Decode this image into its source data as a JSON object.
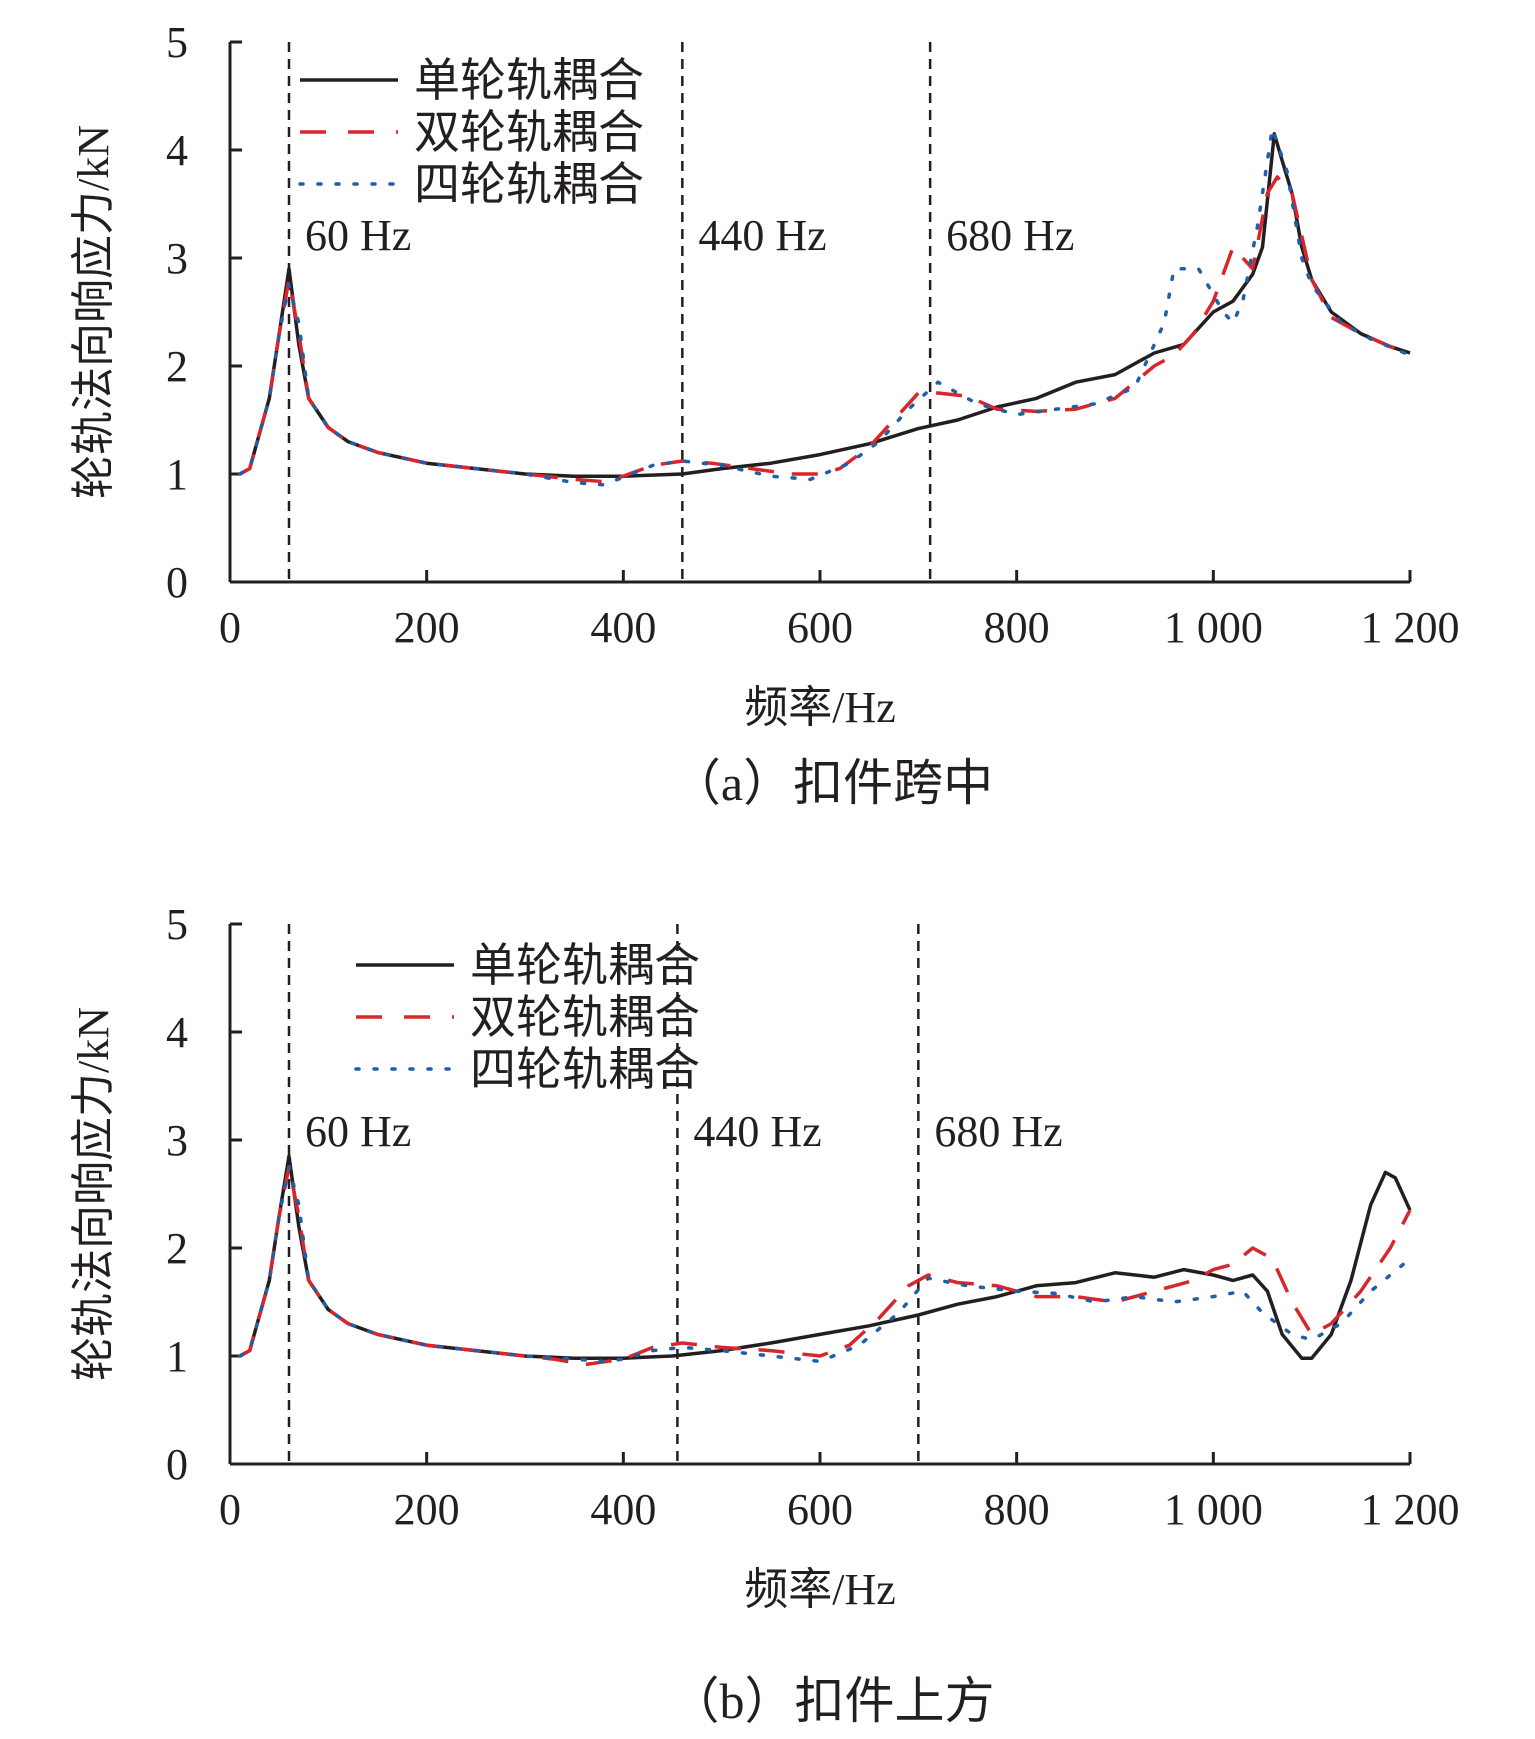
{
  "chart_data": [
    {
      "type": "line",
      "caption": "（a）扣件跨中",
      "xlabel": "频率/Hz",
      "ylabel": "轮轨法向响应力/kN",
      "xlim": [
        0,
        1200
      ],
      "ylim": [
        0,
        5
      ],
      "xticks": [
        0,
        200,
        400,
        600,
        800,
        1000,
        1200
      ],
      "xtick_labels": [
        "0",
        "200",
        "400",
        "600",
        "800",
        "1 000",
        "1 200"
      ],
      "yticks": [
        0,
        1,
        2,
        3,
        4,
        5
      ],
      "ytick_labels": [
        "0",
        "1",
        "2",
        "3",
        "4",
        "5"
      ],
      "legend_position": "top-left",
      "grid": false,
      "annotations": [
        {
          "x": 60,
          "label": "60 Hz"
        },
        {
          "x": 460,
          "label": "440 Hz"
        },
        {
          "x": 712,
          "label": "680 Hz"
        }
      ],
      "series": [
        {
          "name": "单轮轨耦合",
          "style": "solid",
          "color": "#231f20",
          "points": [
            [
              10,
              1.0
            ],
            [
              20,
              1.05
            ],
            [
              40,
              1.7
            ],
            [
              50,
              2.3
            ],
            [
              60,
              2.9
            ],
            [
              70,
              2.2
            ],
            [
              80,
              1.7
            ],
            [
              100,
              1.43
            ],
            [
              120,
              1.3
            ],
            [
              150,
              1.2
            ],
            [
              200,
              1.1
            ],
            [
              250,
              1.05
            ],
            [
              300,
              1.0
            ],
            [
              350,
              0.98
            ],
            [
              400,
              0.98
            ],
            [
              460,
              1.0
            ],
            [
              500,
              1.05
            ],
            [
              550,
              1.1
            ],
            [
              600,
              1.18
            ],
            [
              650,
              1.28
            ],
            [
              700,
              1.42
            ],
            [
              740,
              1.5
            ],
            [
              780,
              1.62
            ],
            [
              820,
              1.7
            ],
            [
              860,
              1.85
            ],
            [
              900,
              1.92
            ],
            [
              940,
              2.12
            ],
            [
              970,
              2.2
            ],
            [
              1000,
              2.5
            ],
            [
              1020,
              2.6
            ],
            [
              1040,
              2.85
            ],
            [
              1050,
              3.1
            ],
            [
              1058,
              3.8
            ],
            [
              1062,
              4.15
            ],
            [
              1070,
              3.9
            ],
            [
              1080,
              3.6
            ],
            [
              1090,
              3.1
            ],
            [
              1100,
              2.8
            ],
            [
              1120,
              2.5
            ],
            [
              1150,
              2.3
            ],
            [
              1180,
              2.18
            ],
            [
              1200,
              2.12
            ]
          ]
        },
        {
          "name": "双轮轨耦合",
          "style": "dashed",
          "color": "#d9262b",
          "points": [
            [
              10,
              1.0
            ],
            [
              20,
              1.05
            ],
            [
              40,
              1.7
            ],
            [
              50,
              2.3
            ],
            [
              60,
              2.8
            ],
            [
              70,
              2.3
            ],
            [
              80,
              1.7
            ],
            [
              100,
              1.43
            ],
            [
              120,
              1.3
            ],
            [
              150,
              1.2
            ],
            [
              200,
              1.1
            ],
            [
              250,
              1.05
            ],
            [
              300,
              1.0
            ],
            [
              350,
              0.95
            ],
            [
              380,
              0.93
            ],
            [
              400,
              0.98
            ],
            [
              430,
              1.08
            ],
            [
              460,
              1.12
            ],
            [
              490,
              1.1
            ],
            [
              530,
              1.05
            ],
            [
              570,
              1.0
            ],
            [
              600,
              1.0
            ],
            [
              620,
              1.05
            ],
            [
              650,
              1.25
            ],
            [
              680,
              1.55
            ],
            [
              700,
              1.75
            ],
            [
              720,
              1.75
            ],
            [
              750,
              1.72
            ],
            [
              780,
              1.6
            ],
            [
              820,
              1.58
            ],
            [
              860,
              1.6
            ],
            [
              900,
              1.7
            ],
            [
              940,
              2.0
            ],
            [
              960,
              2.1
            ],
            [
              980,
              2.3
            ],
            [
              1000,
              2.6
            ],
            [
              1020,
              3.1
            ],
            [
              1040,
              2.9
            ],
            [
              1055,
              3.6
            ],
            [
              1065,
              3.75
            ],
            [
              1080,
              3.6
            ],
            [
              1100,
              2.8
            ],
            [
              1120,
              2.45
            ],
            [
              1150,
              2.3
            ],
            [
              1200,
              2.1
            ]
          ]
        },
        {
          "name": "四轮轨耦合",
          "style": "dotted",
          "color": "#1f5fa8",
          "points": [
            [
              10,
              1.0
            ],
            [
              20,
              1.05
            ],
            [
              40,
              1.7
            ],
            [
              50,
              2.3
            ],
            [
              60,
              2.75
            ],
            [
              70,
              2.4
            ],
            [
              80,
              1.7
            ],
            [
              100,
              1.43
            ],
            [
              120,
              1.3
            ],
            [
              150,
              1.2
            ],
            [
              200,
              1.1
            ],
            [
              250,
              1.05
            ],
            [
              300,
              1.0
            ],
            [
              350,
              0.92
            ],
            [
              380,
              0.9
            ],
            [
              400,
              0.97
            ],
            [
              430,
              1.08
            ],
            [
              460,
              1.12
            ],
            [
              500,
              1.08
            ],
            [
              550,
              0.98
            ],
            [
              590,
              0.95
            ],
            [
              630,
              1.1
            ],
            [
              660,
              1.3
            ],
            [
              690,
              1.6
            ],
            [
              720,
              1.85
            ],
            [
              760,
              1.65
            ],
            [
              800,
              1.55
            ],
            [
              840,
              1.6
            ],
            [
              880,
              1.65
            ],
            [
              920,
              1.8
            ],
            [
              950,
              2.4
            ],
            [
              960,
              2.9
            ],
            [
              985,
              2.9
            ],
            [
              1010,
              2.5
            ],
            [
              1020,
              2.4
            ],
            [
              1030,
              2.6
            ],
            [
              1045,
              3.3
            ],
            [
              1060,
              4.2
            ],
            [
              1075,
              3.8
            ],
            [
              1090,
              3.0
            ],
            [
              1100,
              2.75
            ],
            [
              1130,
              2.4
            ],
            [
              1160,
              2.25
            ],
            [
              1200,
              2.1
            ]
          ]
        }
      ]
    },
    {
      "type": "line",
      "caption": "（b）扣件上方",
      "xlabel": "频率/Hz",
      "ylabel": "轮轨法向响应力/kN",
      "xlim": [
        0,
        1200
      ],
      "ylim": [
        0,
        5
      ],
      "xticks": [
        0,
        200,
        400,
        600,
        800,
        1000,
        1200
      ],
      "xtick_labels": [
        "0",
        "200",
        "400",
        "600",
        "800",
        "1 000",
        "1 200"
      ],
      "yticks": [
        0,
        1,
        2,
        3,
        4,
        5
      ],
      "ytick_labels": [
        "0",
        "1",
        "2",
        "3",
        "4",
        "5"
      ],
      "legend_position": "top-left",
      "grid": false,
      "annotations": [
        {
          "x": 60,
          "label": "60 Hz"
        },
        {
          "x": 455,
          "label": "440 Hz"
        },
        {
          "x": 700,
          "label": "680 Hz"
        }
      ],
      "series": [
        {
          "name": "单轮轨耦合",
          "style": "solid",
          "color": "#231f20",
          "points": [
            [
              10,
              1.0
            ],
            [
              20,
              1.05
            ],
            [
              40,
              1.7
            ],
            [
              50,
              2.3
            ],
            [
              60,
              2.85
            ],
            [
              70,
              2.2
            ],
            [
              80,
              1.7
            ],
            [
              100,
              1.43
            ],
            [
              120,
              1.3
            ],
            [
              150,
              1.2
            ],
            [
              200,
              1.1
            ],
            [
              250,
              1.05
            ],
            [
              300,
              1.0
            ],
            [
              350,
              0.98
            ],
            [
              400,
              0.98
            ],
            [
              450,
              1.0
            ],
            [
              500,
              1.05
            ],
            [
              550,
              1.12
            ],
            [
              600,
              1.2
            ],
            [
              650,
              1.28
            ],
            [
              700,
              1.38
            ],
            [
              740,
              1.48
            ],
            [
              780,
              1.55
            ],
            [
              820,
              1.65
            ],
            [
              860,
              1.68
            ],
            [
              900,
              1.77
            ],
            [
              940,
              1.73
            ],
            [
              970,
              1.8
            ],
            [
              1000,
              1.75
            ],
            [
              1020,
              1.7
            ],
            [
              1040,
              1.75
            ],
            [
              1055,
              1.6
            ],
            [
              1070,
              1.2
            ],
            [
              1090,
              0.98
            ],
            [
              1100,
              0.98
            ],
            [
              1120,
              1.2
            ],
            [
              1140,
              1.7
            ],
            [
              1160,
              2.4
            ],
            [
              1175,
              2.7
            ],
            [
              1185,
              2.65
            ],
            [
              1200,
              2.35
            ]
          ]
        },
        {
          "name": "双轮轨耦合",
          "style": "dashed",
          "color": "#d9262b",
          "points": [
            [
              10,
              1.0
            ],
            [
              20,
              1.05
            ],
            [
              40,
              1.7
            ],
            [
              50,
              2.3
            ],
            [
              60,
              2.75
            ],
            [
              70,
              2.3
            ],
            [
              80,
              1.7
            ],
            [
              100,
              1.43
            ],
            [
              120,
              1.3
            ],
            [
              150,
              1.2
            ],
            [
              200,
              1.1
            ],
            [
              250,
              1.05
            ],
            [
              300,
              1.0
            ],
            [
              330,
              0.97
            ],
            [
              360,
              0.92
            ],
            [
              400,
              0.97
            ],
            [
              430,
              1.08
            ],
            [
              460,
              1.12
            ],
            [
              500,
              1.08
            ],
            [
              550,
              1.05
            ],
            [
              600,
              1.0
            ],
            [
              630,
              1.1
            ],
            [
              660,
              1.35
            ],
            [
              690,
              1.65
            ],
            [
              710,
              1.75
            ],
            [
              740,
              1.68
            ],
            [
              780,
              1.65
            ],
            [
              820,
              1.55
            ],
            [
              860,
              1.55
            ],
            [
              900,
              1.5
            ],
            [
              940,
              1.6
            ],
            [
              980,
              1.7
            ],
            [
              1000,
              1.8
            ],
            [
              1020,
              1.85
            ],
            [
              1040,
              2.0
            ],
            [
              1060,
              1.9
            ],
            [
              1080,
              1.5
            ],
            [
              1100,
              1.2
            ],
            [
              1120,
              1.3
            ],
            [
              1150,
              1.6
            ],
            [
              1180,
              2.0
            ],
            [
              1200,
              2.35
            ]
          ]
        },
        {
          "name": "四轮轨耦合",
          "style": "dotted",
          "color": "#1f5fa8",
          "points": [
            [
              10,
              1.0
            ],
            [
              20,
              1.05
            ],
            [
              40,
              1.7
            ],
            [
              50,
              2.3
            ],
            [
              60,
              2.75
            ],
            [
              70,
              2.4
            ],
            [
              80,
              1.7
            ],
            [
              100,
              1.43
            ],
            [
              120,
              1.3
            ],
            [
              150,
              1.2
            ],
            [
              200,
              1.1
            ],
            [
              250,
              1.05
            ],
            [
              300,
              1.0
            ],
            [
              350,
              0.97
            ],
            [
              380,
              0.95
            ],
            [
              400,
              0.97
            ],
            [
              430,
              1.05
            ],
            [
              460,
              1.08
            ],
            [
              500,
              1.05
            ],
            [
              550,
              1.0
            ],
            [
              600,
              0.95
            ],
            [
              640,
              1.1
            ],
            [
              680,
              1.4
            ],
            [
              710,
              1.72
            ],
            [
              750,
              1.65
            ],
            [
              800,
              1.6
            ],
            [
              840,
              1.58
            ],
            [
              880,
              1.5
            ],
            [
              920,
              1.55
            ],
            [
              960,
              1.5
            ],
            [
              1000,
              1.55
            ],
            [
              1030,
              1.6
            ],
            [
              1050,
              1.4
            ],
            [
              1080,
              1.2
            ],
            [
              1100,
              1.15
            ],
            [
              1130,
              1.3
            ],
            [
              1160,
              1.6
            ],
            [
              1200,
              1.9
            ]
          ]
        }
      ]
    }
  ]
}
